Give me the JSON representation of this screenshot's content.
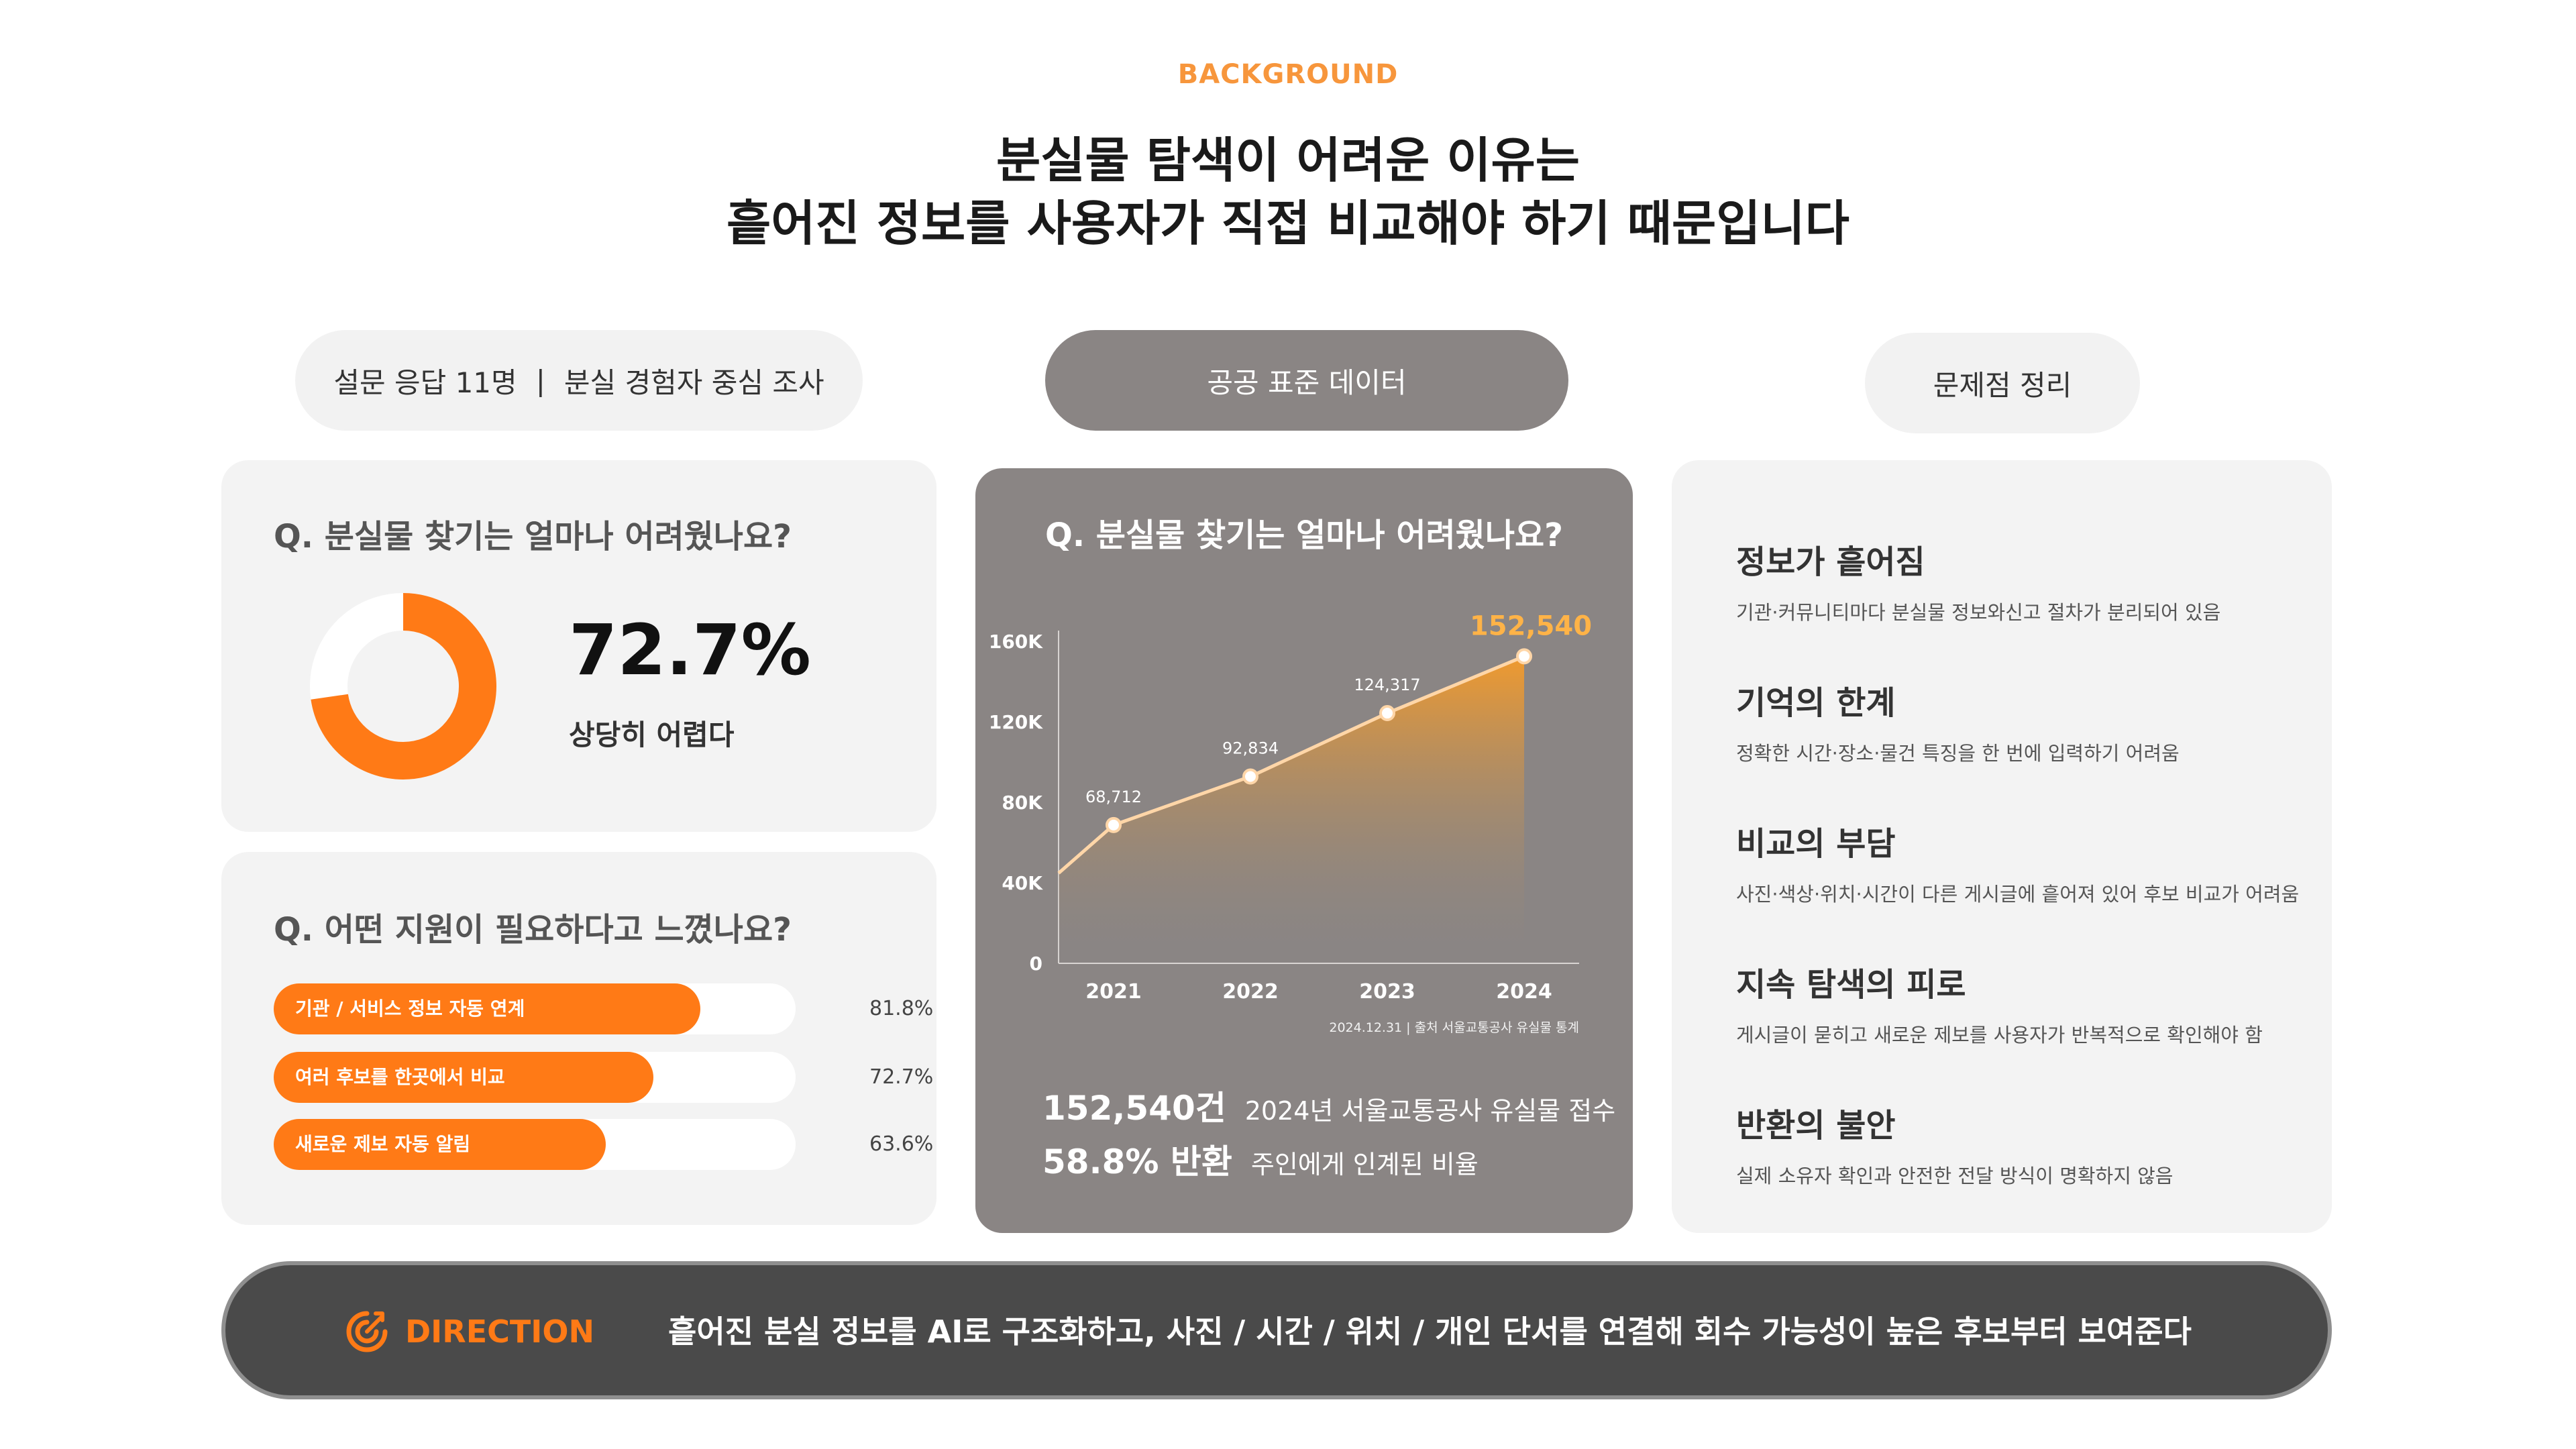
{
  "header": {
    "eyebrow": "BACKGROUND",
    "headline_line1": "분실물 탐색이 어려운 이유는",
    "headline_line2": "흩어진 정보를 사용자가 직접 비교해야 하기 때문입니다"
  },
  "pills": {
    "survey_left": "설문 응답 11명",
    "survey_sep": "|",
    "survey_right": "분실 경험자 중심 조사",
    "public_data": "공공 표준 데이터",
    "summary": "문제점 정리"
  },
  "donut_card": {
    "question": "Q. 분실물 찾기는 얼마나 어려웠나요?",
    "percent_text": "72.7%",
    "percent_value": 72.7,
    "label": "상당히 어렵다"
  },
  "bars_card": {
    "question": "Q. 어떤 지원이 필요하다고 느꼈나요?",
    "items": [
      {
        "label": "기관 / 서비스 정보 자동 연계",
        "value_text": "81.8%",
        "value": 81.8
      },
      {
        "label": "여러 후보를 한곳에서 비교",
        "value_text": "72.7%",
        "value": 72.7
      },
      {
        "label": "새로운 제보 자동 알림",
        "value_text": "63.6%",
        "value": 63.6
      }
    ]
  },
  "chart_card": {
    "question": "Q. 분실물 찾기는 얼마나 어려웠나요?",
    "source": "2024.12.31 | 출처 서울교통공사 유실물 통계",
    "stats": [
      {
        "big": "152,540건",
        "small": "2024년 서울교통공사 유실물 접수"
      },
      {
        "big": "58.8% 반환",
        "small": "주인에게 인계된 비율"
      }
    ]
  },
  "chart_data": {
    "type": "area",
    "x": [
      "2021",
      "2022",
      "2023",
      "2024"
    ],
    "series": [
      {
        "values": [
          68712,
          92834,
          124317,
          152540
        ],
        "labels": [
          "68,712",
          "92,834",
          "124,317",
          "152,540"
        ]
      }
    ],
    "y_ticks": [
      "0",
      "40K",
      "80K",
      "120K",
      "160K"
    ],
    "ylim": [
      0,
      160000
    ],
    "legend": "none",
    "grid": false,
    "highlight_last": true,
    "colors": {
      "line": "#FFD6A8",
      "highlight": "#FFB347",
      "fill_top": "#F09A2E"
    }
  },
  "issues": {
    "items": [
      {
        "title": "정보가 흩어짐",
        "desc": "기관·커뮤니티마다 분실물 정보와신고 절차가 분리되어 있음"
      },
      {
        "title": "기억의 한계",
        "desc": "정확한 시간·장소·물건 특징을 한 번에 입력하기 어려움"
      },
      {
        "title": "비교의 부담",
        "desc": "사진·색상·위치·시간이 다른 게시글에 흩어져 있어 후보 비교가 어려움"
      },
      {
        "title": "지속 탐색의 피로",
        "desc": "게시글이 묻히고 새로운 제보를 사용자가 반복적으로 확인해야 함"
      },
      {
        "title": "반환의 불안",
        "desc": "실제 소유자 확인과 안전한 전달 방식이 명확하지 않음"
      }
    ]
  },
  "direction": {
    "icon": "target-arrow-icon",
    "label": "DIRECTION",
    "text": "흩어진 분실 정보를 AI로 구조화하고, 사진 / 시간 / 위치 / 개인 단서를 연결해 회수 가능성이 높은 후보부터 보여준다"
  },
  "colors": {
    "accent": "#FF7A16",
    "eyebrow": "#F7963C",
    "card": "#F3F3F3",
    "dark_card": "#8A8584",
    "banner": "#4A4A4A"
  }
}
